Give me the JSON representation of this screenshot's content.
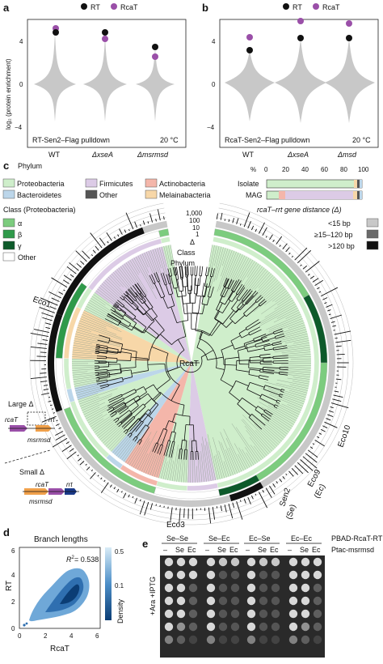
{
  "colors": {
    "rt": "#111111",
    "rcat": "#9a4fa8",
    "violin": "#c8c8c8",
    "proteobacteria": "#cfeecb",
    "firmicutes": "#dccbe6",
    "actinobacteria": "#f4b6aa",
    "bacteroidetes": "#bcd6ea",
    "other": "#555555",
    "melainabacteria": "#f7d7a8",
    "alpha": "#7ccc7e",
    "beta": "#2f9a4a",
    "gamma": "#0d5a2a",
    "heat_low": "#d9ecf7",
    "heat_high": "#0b3d75"
  },
  "panel_a": {
    "label": "a",
    "legend_rt": "RT",
    "legend_rcat": "RcaT",
    "ylabel": "log₂ (protein enrichment)",
    "yticks": [
      "4",
      "0",
      "−4"
    ],
    "pulldown": "RT-Sen2–Flag pulldown",
    "temp": "20 °C",
    "xlabels": [
      "WT",
      "ΔxseA",
      "Δmsrmsd"
    ]
  },
  "panel_b": {
    "label": "b",
    "legend_rt": "RT",
    "legend_rcat": "RcaT",
    "yticks": [
      "4",
      "0",
      "−4"
    ],
    "pulldown": "RcaT-Sen2–Flag pulldown",
    "temp": "20 °C",
    "xlabels": [
      "WT",
      "ΔxseA",
      "Δmsd"
    ]
  },
  "panel_c": {
    "label": "c",
    "phylum_title": "Phylum",
    "phyla": [
      "Proteobacteria",
      "Firmicutes",
      "Actinobacteria",
      "Bacteroidetes",
      "Other",
      "Melainabacteria"
    ],
    "bar_axis": [
      "%",
      "0",
      "20",
      "40",
      "60",
      "80",
      "100"
    ],
    "bar_rows": [
      "Isolate",
      "MAG"
    ],
    "class_title": "Class (Proteobacteria)",
    "classes": [
      "α",
      "β",
      "γ",
      "Other"
    ],
    "dist_title": "rcaT–rrt gene distance (Δ)",
    "dist_bins": [
      "<15 bp",
      "≥15–120 bp",
      ">120 bp"
    ],
    "ring_scale": [
      "1,000",
      "100",
      "10",
      "1"
    ],
    "ring_labels": [
      "Δ",
      "Class",
      "Phylum"
    ],
    "center": "RcaT",
    "clade_labels": [
      "Eco1",
      "Eco10",
      "Eco9",
      "(Ec)",
      "Sen2",
      "(Se)",
      "Eco3"
    ],
    "large_delta": "Large Δ",
    "small_delta": "Small Δ",
    "gene_labels": [
      "rcaT",
      "rrt",
      "msrmsd",
      "rcaT",
      "rrt",
      "msrmsd"
    ]
  },
  "panel_d": {
    "label": "d",
    "title": "Branch lengths",
    "r2": "= 0.538",
    "xlabel": "RcaT",
    "ylabel": "RT",
    "ticks": [
      "0",
      "2",
      "4",
      "6"
    ],
    "colorbar": [
      "0.5",
      "0.1"
    ],
    "colorbar_label": "Density"
  },
  "panel_e": {
    "label": "e",
    "columns": [
      "Se–Se",
      "Se–Ec",
      "Ec–Se",
      "Ec–Ec"
    ],
    "row1": "PBAD-RcaT-RT",
    "sub": [
      "–",
      "Se",
      "Ec"
    ],
    "row2": "Ptac-msrmsd",
    "side": "+Ara +IPTG"
  }
}
